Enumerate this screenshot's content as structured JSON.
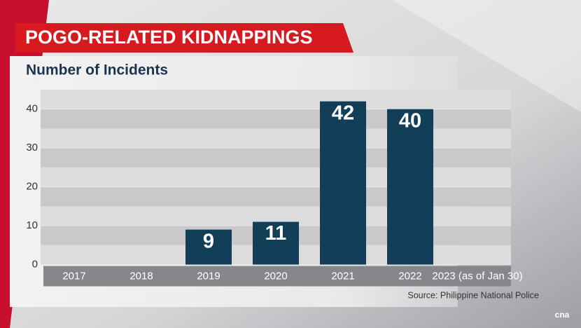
{
  "chart_data": {
    "type": "bar",
    "title": "POGO-RELATED KIDNAPPINGS",
    "subtitle": "Number of Incidents",
    "source": "Source: Philippine National Police",
    "logo": "cna",
    "categories": [
      "2017",
      "2018",
      "2019",
      "2020",
      "2021",
      "2022",
      "2023 (as of Jan 30)"
    ],
    "values": [
      null,
      null,
      9,
      11,
      42,
      40,
      null
    ],
    "color": "#133e58",
    "ylim": [
      0,
      45
    ],
    "yticks": [
      0,
      10,
      20,
      30,
      40
    ],
    "grid": true
  }
}
